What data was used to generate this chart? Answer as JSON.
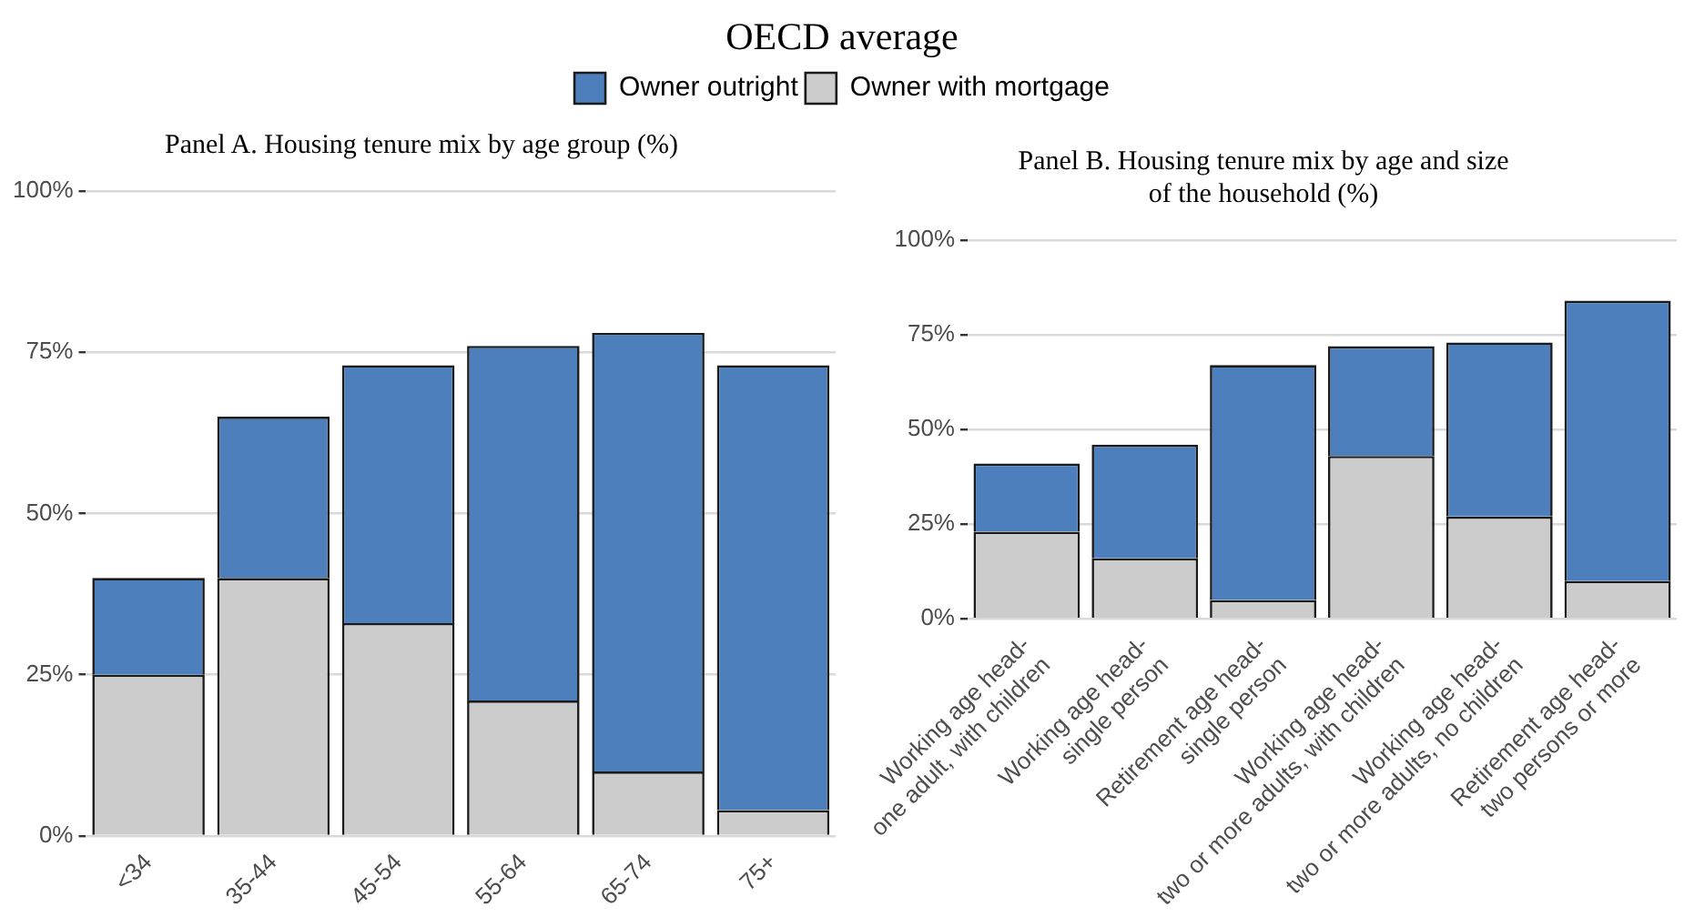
{
  "chart_data": [
    {
      "type": "other",
      "title": "OECD average"
    },
    {
      "type": "bar",
      "title": "Panel A. Housing tenure mix by age group (%)",
      "categories": [
        "<34",
        "35-44",
        "45-54",
        "55-64",
        "65-74",
        "75+"
      ],
      "stacked": true,
      "series": [
        {
          "name": "Owner with mortgage",
          "color": "#cccccc",
          "values": [
            25,
            40,
            33,
            21,
            10,
            4
          ]
        },
        {
          "name": "Owner outright",
          "color": "#4d7fbc",
          "values": [
            15,
            25,
            40,
            55,
            68,
            69
          ]
        }
      ],
      "ylim": [
        0,
        100
      ],
      "yticks": [
        {
          "value": 0,
          "label": "0%"
        },
        {
          "value": 25,
          "label": "25%"
        },
        {
          "value": 50,
          "label": "50%"
        },
        {
          "value": 75,
          "label": "75%"
        },
        {
          "value": 100,
          "label": "100%"
        }
      ],
      "grid": "y",
      "legend": "top"
    },
    {
      "type": "bar",
      "title": "Panel B. Housing tenure mix by age and size\nof the household (%)",
      "categories": [
        "Working age head-\none adult, with children",
        "Working age head-\nsingle person",
        "Retirement age head-\nsingle person",
        "Working age head-\ntwo or more adults, with children",
        "Working age head-\ntwo or more adults, no children",
        "Retirement age head-\ntwo persons or more"
      ],
      "stacked": true,
      "series": [
        {
          "color": "#cccccc",
          "values": [
            23,
            16,
            5,
            43,
            27,
            10
          ]
        },
        {
          "color": "#4d7fbc",
          "values": [
            18,
            30,
            62,
            29,
            46,
            74
          ]
        }
      ],
      "ylim": [
        0,
        100
      ],
      "yticks": [
        {
          "value": 0,
          "label": "0%"
        },
        {
          "value": 25,
          "label": "25%"
        },
        {
          "value": 50,
          "label": "50%"
        },
        {
          "value": 75,
          "label": "75%"
        },
        {
          "value": 100,
          "label": "100%"
        }
      ],
      "grid": "y"
    }
  ]
}
